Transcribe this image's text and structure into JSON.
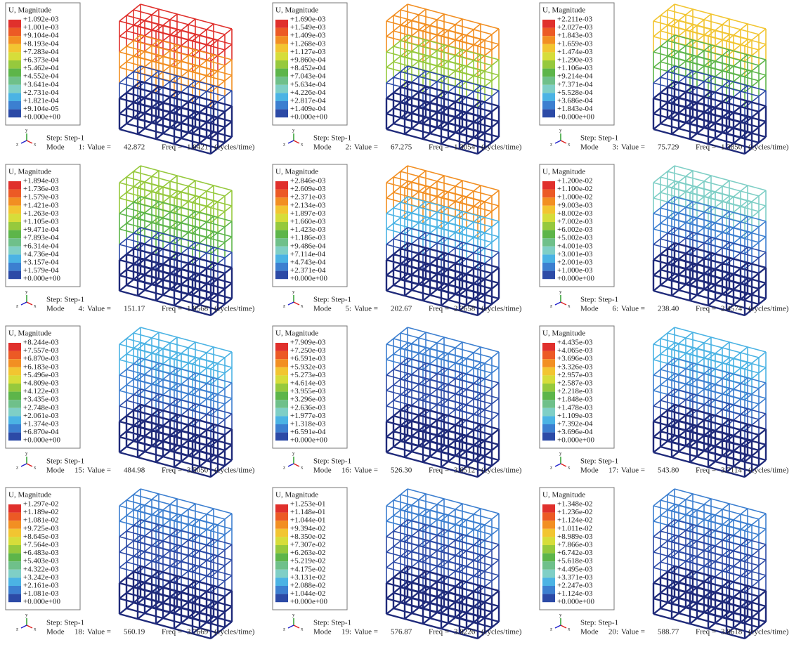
{
  "panels": [
    {
      "legend_title": "U, Magnitude",
      "legend_values": [
        "+1.092e-03",
        "+1.001e-03",
        "+9.104e-04",
        "+8.193e-04",
        "+7.283e-04",
        "+6.373e-04",
        "+5.462e-04",
        "+4.552e-04",
        "+3.641e-04",
        "+2.731e-04",
        "+1.821e-04",
        "+9.104e-05",
        "+0.000e+00"
      ],
      "step": "Step: Step-1",
      "mode_label": "Mode",
      "mode": "1:",
      "value_label": "Value =",
      "value": "42.872",
      "freq_label": "Freq =",
      "freq": "1.0421",
      "unit": "(cycles/time)",
      "triad": [
        "y",
        "z",
        "x"
      ]
    },
    {
      "legend_title": "U, Magnitude",
      "legend_values": [
        "+1.690e-03",
        "+1.549e-03",
        "+1.409e-03",
        "+1.268e-03",
        "+1.127e-03",
        "+9.860e-04",
        "+8.452e-04",
        "+7.043e-04",
        "+5.634e-04",
        "+4.226e-04",
        "+2.817e-04",
        "+1.409e-04",
        "+0.000e+00"
      ],
      "step": "Step: Step-1",
      "mode_label": "Mode",
      "mode": "2:",
      "value_label": "Value =",
      "value": "67.275",
      "freq_label": "Freq =",
      "freq": "1.3054",
      "unit": "(cycles/time)",
      "triad": [
        "y",
        "z",
        "x"
      ]
    },
    {
      "legend_title": "U, Magnitude",
      "legend_values": [
        "+2.211e-03",
        "+2.027e-03",
        "+1.843e-03",
        "+1.659e-03",
        "+1.474e-03",
        "+1.290e-03",
        "+1.106e-03",
        "+9.214e-04",
        "+7.371e-04",
        "+5.528e-04",
        "+3.686e-04",
        "+1.843e-04",
        "+0.000e+00"
      ],
      "step": "Step: Step-1",
      "mode_label": "Mode",
      "mode": "3:",
      "value_label": "Value =",
      "value": "75.729",
      "freq_label": "Freq =",
      "freq": "1.3850",
      "unit": "(cycles/time)",
      "triad": [
        "y",
        "z",
        "x"
      ]
    },
    {
      "legend_title": "U, Magnitude",
      "legend_values": [
        "+1.894e-03",
        "+1.736e-03",
        "+1.579e-03",
        "+1.421e-03",
        "+1.263e-03",
        "+1.105e-03",
        "+9.471e-04",
        "+7.893e-04",
        "+6.314e-04",
        "+4.736e-04",
        "+3.157e-04",
        "+1.579e-04",
        "+0.000e+00"
      ],
      "step": "Step: Step-1",
      "mode_label": "Mode",
      "mode": "4:",
      "value_label": "Value =",
      "value": "151.17",
      "freq_label": "Freq =",
      "freq": "1.9568",
      "unit": "(cycles/time)",
      "triad": [
        "y",
        "z",
        "x"
      ]
    },
    {
      "legend_title": "U, Magnitude",
      "legend_values": [
        "+2.846e-03",
        "+2.609e-03",
        "+2.371e-03",
        "+2.134e-03",
        "+1.897e-03",
        "+1.660e-03",
        "+1.423e-03",
        "+1.186e-03",
        "+9.486e-04",
        "+7.114e-04",
        "+4.743e-04",
        "+2.371e-04",
        "+0.000e+00"
      ],
      "step": "Step: Step-1",
      "mode_label": "Mode",
      "mode": "5:",
      "value_label": "Value =",
      "value": "202.67",
      "freq_label": "Freq =",
      "freq": "2.2658",
      "unit": "(cycles/time)",
      "triad": [
        "y",
        "z",
        "x"
      ]
    },
    {
      "legend_title": "U, Magnitude",
      "legend_values": [
        "+1.200e-02",
        "+1.100e-02",
        "+1.000e-02",
        "+9.003e-03",
        "+8.002e-03",
        "+7.002e-03",
        "+6.002e-03",
        "+5.002e-03",
        "+4.001e-03",
        "+3.001e-03",
        "+2.001e-03",
        "+1.000e-03",
        "+0.000e+00"
      ],
      "step": "Step: Step-1",
      "mode_label": "Mode",
      "mode": "6:",
      "value_label": "Value =",
      "value": "238.40",
      "freq_label": "Freq =",
      "freq": "2.4574",
      "unit": "(cycles/time)",
      "triad": [
        "y",
        "z",
        "x"
      ]
    },
    {
      "legend_title": "U, Magnitude",
      "legend_values": [
        "+8.244e-03",
        "+7.557e-03",
        "+6.870e-03",
        "+6.183e-03",
        "+5.496e-03",
        "+4.809e-03",
        "+4.122e-03",
        "+3.435e-03",
        "+2.748e-03",
        "+2.061e-03",
        "+1.374e-03",
        "+6.870e-04",
        "+0.000e+00"
      ],
      "step": "Step: Step-1",
      "mode_label": "Mode",
      "mode": "15:",
      "value_label": "Value =",
      "value": "484.98",
      "freq_label": "Freq =",
      "freq": "3.5050",
      "unit": "(cycles/time)",
      "triad": [
        "y",
        "z",
        "x"
      ]
    },
    {
      "legend_title": "U, Magnitude",
      "legend_values": [
        "+7.909e-03",
        "+7.250e-03",
        "+6.591e-03",
        "+5.932e-03",
        "+5.273e-03",
        "+4.614e-03",
        "+3.955e-03",
        "+3.296e-03",
        "+2.636e-03",
        "+1.977e-03",
        "+1.318e-03",
        "+6.591e-04",
        "+0.000e+00"
      ],
      "step": "Step: Step-1",
      "mode_label": "Mode",
      "mode": "16:",
      "value_label": "Value =",
      "value": "526.30",
      "freq_label": "Freq =",
      "freq": "3.6512",
      "unit": "(cycles/time)",
      "triad": [
        "y",
        "z",
        "x"
      ]
    },
    {
      "legend_title": "U, Magnitude",
      "legend_values": [
        "+4.435e-03",
        "+4.065e-03",
        "+3.696e-03",
        "+3.326e-03",
        "+2.957e-03",
        "+2.587e-03",
        "+2.218e-03",
        "+1.848e-03",
        "+1.478e-03",
        "+1.109e-03",
        "+7.392e-04",
        "+3.696e-04",
        "+0.000e+00"
      ],
      "step": "Step: Step-1",
      "mode_label": "Mode",
      "mode": "17:",
      "value_label": "Value =",
      "value": "543.80",
      "freq_label": "Freq =",
      "freq": "3.7114",
      "unit": "(cycles/time)",
      "triad": [
        "y",
        "z",
        "x"
      ]
    },
    {
      "legend_title": "U, Magnitude",
      "legend_values": [
        "+1.297e-02",
        "+1.189e-02",
        "+1.081e-02",
        "+9.725e-03",
        "+8.645e-03",
        "+7.564e-03",
        "+6.483e-03",
        "+5.403e-03",
        "+4.322e-03",
        "+3.242e-03",
        "+2.161e-03",
        "+1.081e-03",
        "+0.000e+00"
      ],
      "step": "Step: Step-1",
      "mode_label": "Mode",
      "mode": "18:",
      "value_label": "Value =",
      "value": "560.19",
      "freq_label": "Freq =",
      "freq": "3.7669",
      "unit": "(cycles/time)",
      "triad": [
        "y",
        "z",
        "x"
      ]
    },
    {
      "legend_title": "U, Magnitude",
      "legend_values": [
        "+1.253e-01",
        "+1.148e-01",
        "+1.044e-01",
        "+9.394e-02",
        "+8.350e-02",
        "+7.307e-02",
        "+6.263e-02",
        "+5.219e-02",
        "+4.175e-02",
        "+3.131e-02",
        "+2.088e-02",
        "+1.044e-02",
        "+0.000e+00"
      ],
      "step": "Step: Step-1",
      "mode_label": "Mode",
      "mode": "19:",
      "value_label": "Value =",
      "value": "576.87",
      "freq_label": "Freq =",
      "freq": "3.8226",
      "unit": "(cycles/time)",
      "triad": [
        "y",
        "z",
        "x"
      ]
    },
    {
      "legend_title": "U, Magnitude",
      "legend_values": [
        "+1.348e-02",
        "+1.236e-02",
        "+1.124e-02",
        "+1.011e-02",
        "+8.989e-03",
        "+7.866e-03",
        "+6.742e-03",
        "+5.618e-03",
        "+4.495e-03",
        "+3.371e-03",
        "+2.247e-03",
        "+1.124e-03",
        "+0.000e+00"
      ],
      "step": "Step: Step-1",
      "mode_label": "Mode",
      "mode": "20:",
      "value_label": "Value =",
      "value": "588.77",
      "freq_label": "Freq =",
      "freq": "3.8618",
      "unit": "(cycles/time)",
      "triad": [
        "y",
        "z",
        "x"
      ]
    }
  ]
}
